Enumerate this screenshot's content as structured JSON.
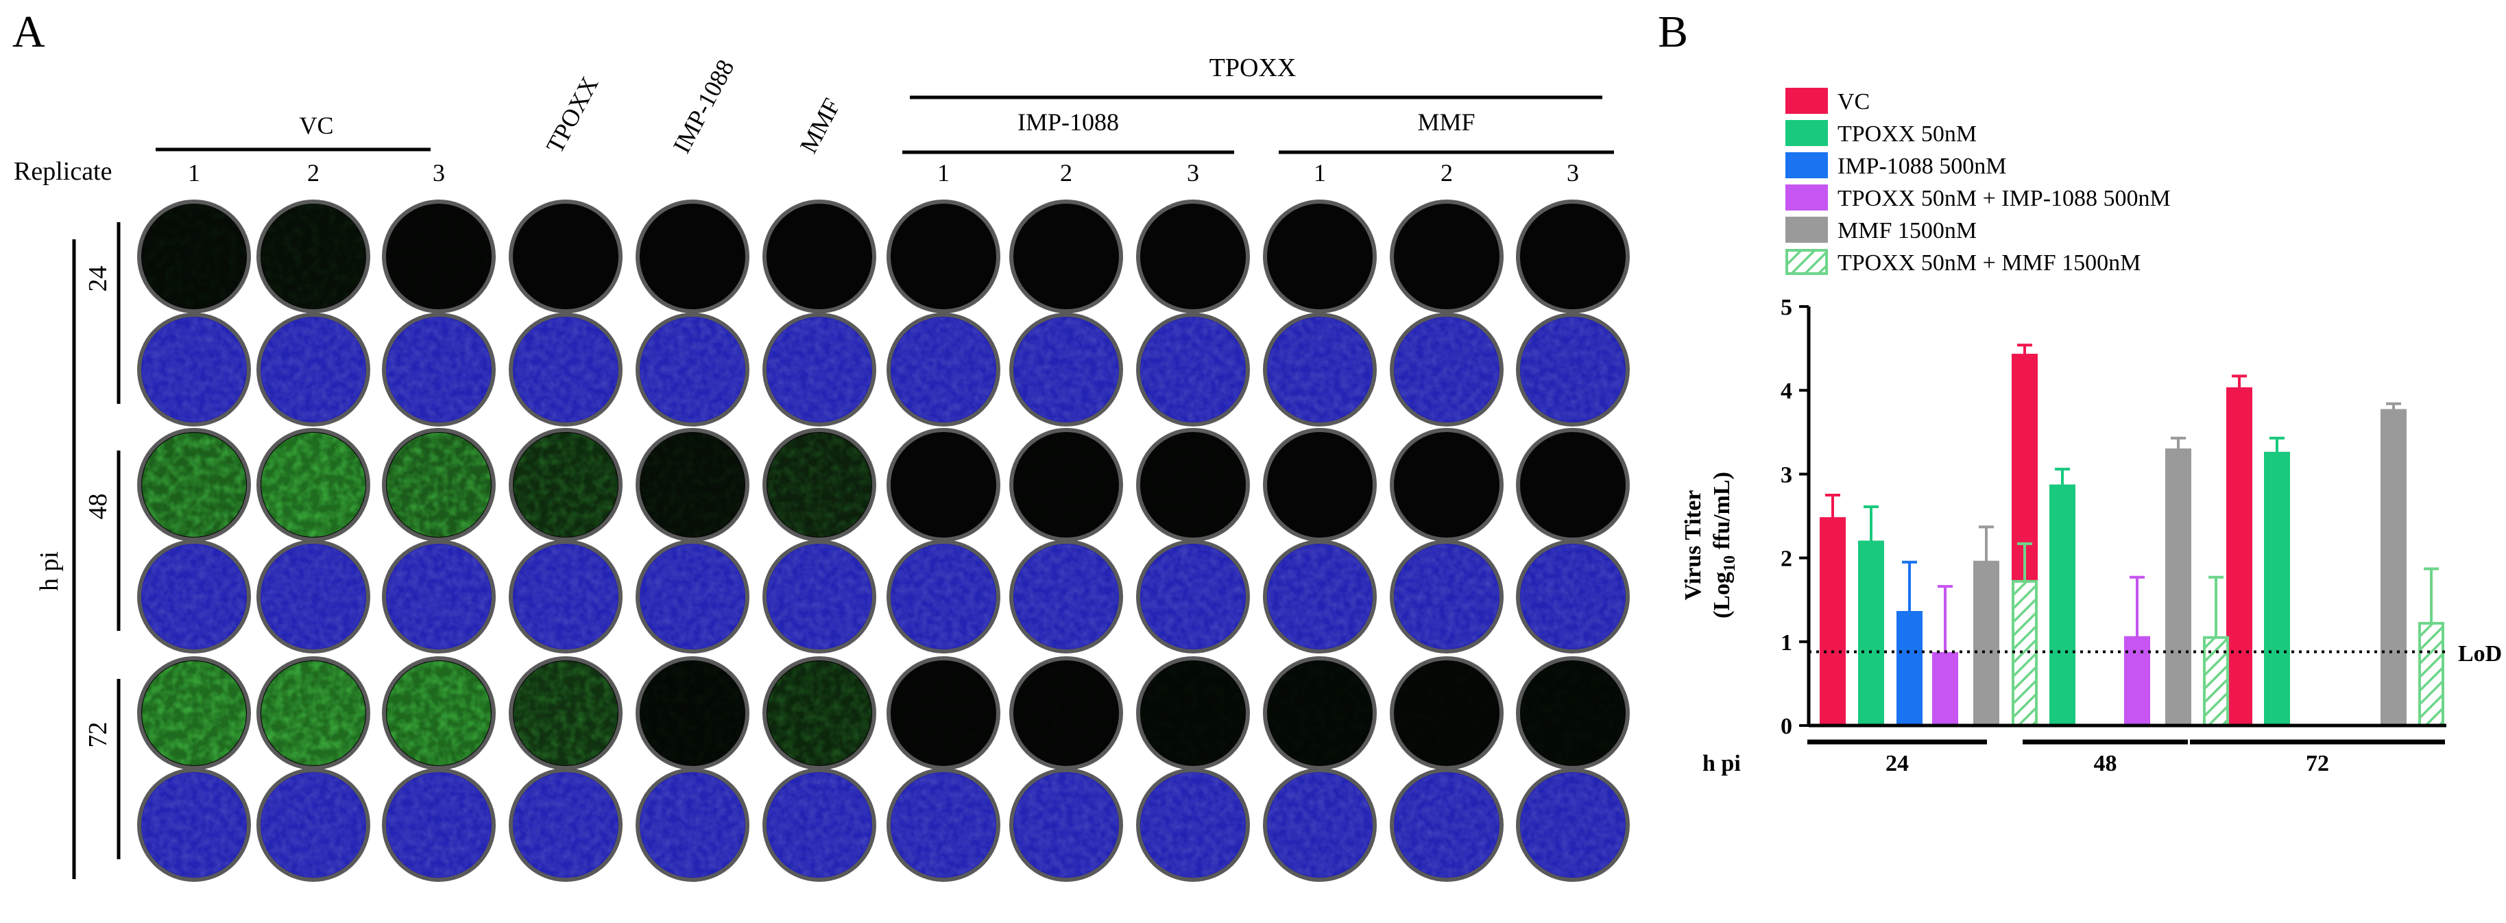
{
  "panel_a": {
    "label": "A",
    "replicate_label": "Replicate",
    "hpi_label": "h pi",
    "top_group_label": "TPOXX",
    "columns": [
      {
        "header": "1",
        "group": "VC"
      },
      {
        "header": "2",
        "group": "VC"
      },
      {
        "header": "3",
        "group": "VC"
      },
      {
        "header": "TPOXX",
        "rotated": true
      },
      {
        "header": "IMP-1088",
        "rotated": true
      },
      {
        "header": "MMF",
        "rotated": true
      },
      {
        "header": "1",
        "group": "IMP-1088"
      },
      {
        "header": "2",
        "group": "IMP-1088"
      },
      {
        "header": "3",
        "group": "IMP-1088"
      },
      {
        "header": "1",
        "group": "MMF"
      },
      {
        "header": "2",
        "group": "MMF"
      },
      {
        "header": "3",
        "group": "MMF"
      }
    ],
    "groups": [
      {
        "label": "VC"
      },
      {
        "label": "IMP-1088"
      },
      {
        "label": "MMF"
      }
    ],
    "timepoints": [
      {
        "label": "24",
        "green_intensity": [
          0.06,
          0.08,
          0.02,
          0.0,
          0.0,
          0.0,
          0.0,
          0.0,
          0.0,
          0.0,
          0.0,
          0.0
        ]
      },
      {
        "label": "48",
        "green_intensity": [
          0.8,
          0.9,
          0.75,
          0.35,
          0.08,
          0.25,
          0.0,
          0.02,
          0.02,
          0.0,
          0.0,
          0.0
        ]
      },
      {
        "label": "72",
        "green_intensity": [
          0.9,
          0.92,
          0.88,
          0.4,
          0.05,
          0.3,
          0.02,
          0.02,
          0.04,
          0.04,
          0.03,
          0.04
        ]
      }
    ],
    "colors": {
      "blue": "#2a2ac8",
      "green": "#3cbf3c",
      "well_border": "#555555"
    }
  },
  "panel_b": {
    "label": "B",
    "chart_data": {
      "type": "bar",
      "xlabel": "h pi",
      "ylabel_line1": "Virus Titer",
      "ylabel_line2": "(Log",
      "ylabel_sub": "10",
      "ylabel_line2_end": " ffu/mL)",
      "ylim": [
        0,
        5
      ],
      "yticks": [
        "0",
        "1",
        "2",
        "3",
        "4",
        "5"
      ],
      "categories": [
        "24",
        "48",
        "72"
      ],
      "lod": {
        "value": 0.88,
        "label": "LoD"
      },
      "series": [
        {
          "name": "VC",
          "color": "#f0174f",
          "pattern": "solid",
          "values": [
            2.47,
            4.42,
            4.02
          ],
          "errors": [
            0.28,
            0.12,
            0.15
          ]
        },
        {
          "name": "TPOXX 50nM",
          "color": "#19c97e",
          "pattern": "solid",
          "values": [
            2.19,
            2.86,
            3.25
          ],
          "errors": [
            0.42,
            0.2,
            0.18
          ]
        },
        {
          "name": "IMP-1088 500nM",
          "color": "#1a73f0",
          "pattern": "solid",
          "values": [
            1.35,
            null,
            null
          ],
          "errors": [
            0.6,
            0,
            0
          ]
        },
        {
          "name": "TPOXX 50nM + IMP-1088 500nM",
          "color": "#c655f2",
          "pattern": "solid",
          "values": [
            0.86,
            1.05,
            null
          ],
          "errors": [
            0.8,
            0.72,
            0
          ]
        },
        {
          "name": "MMF 1500nM",
          "color": "#9a9a9a",
          "pattern": "solid",
          "values": [
            1.95,
            3.29,
            3.76
          ],
          "errors": [
            0.42,
            0.14,
            0.08
          ]
        },
        {
          "name": "TPOXX 50nM + MMF 1500nM",
          "color": "#6ed68a",
          "pattern": "hatched",
          "values": [
            1.72,
            1.05,
            1.22
          ],
          "errors": [
            0.45,
            0.72,
            0.65
          ]
        }
      ]
    }
  }
}
